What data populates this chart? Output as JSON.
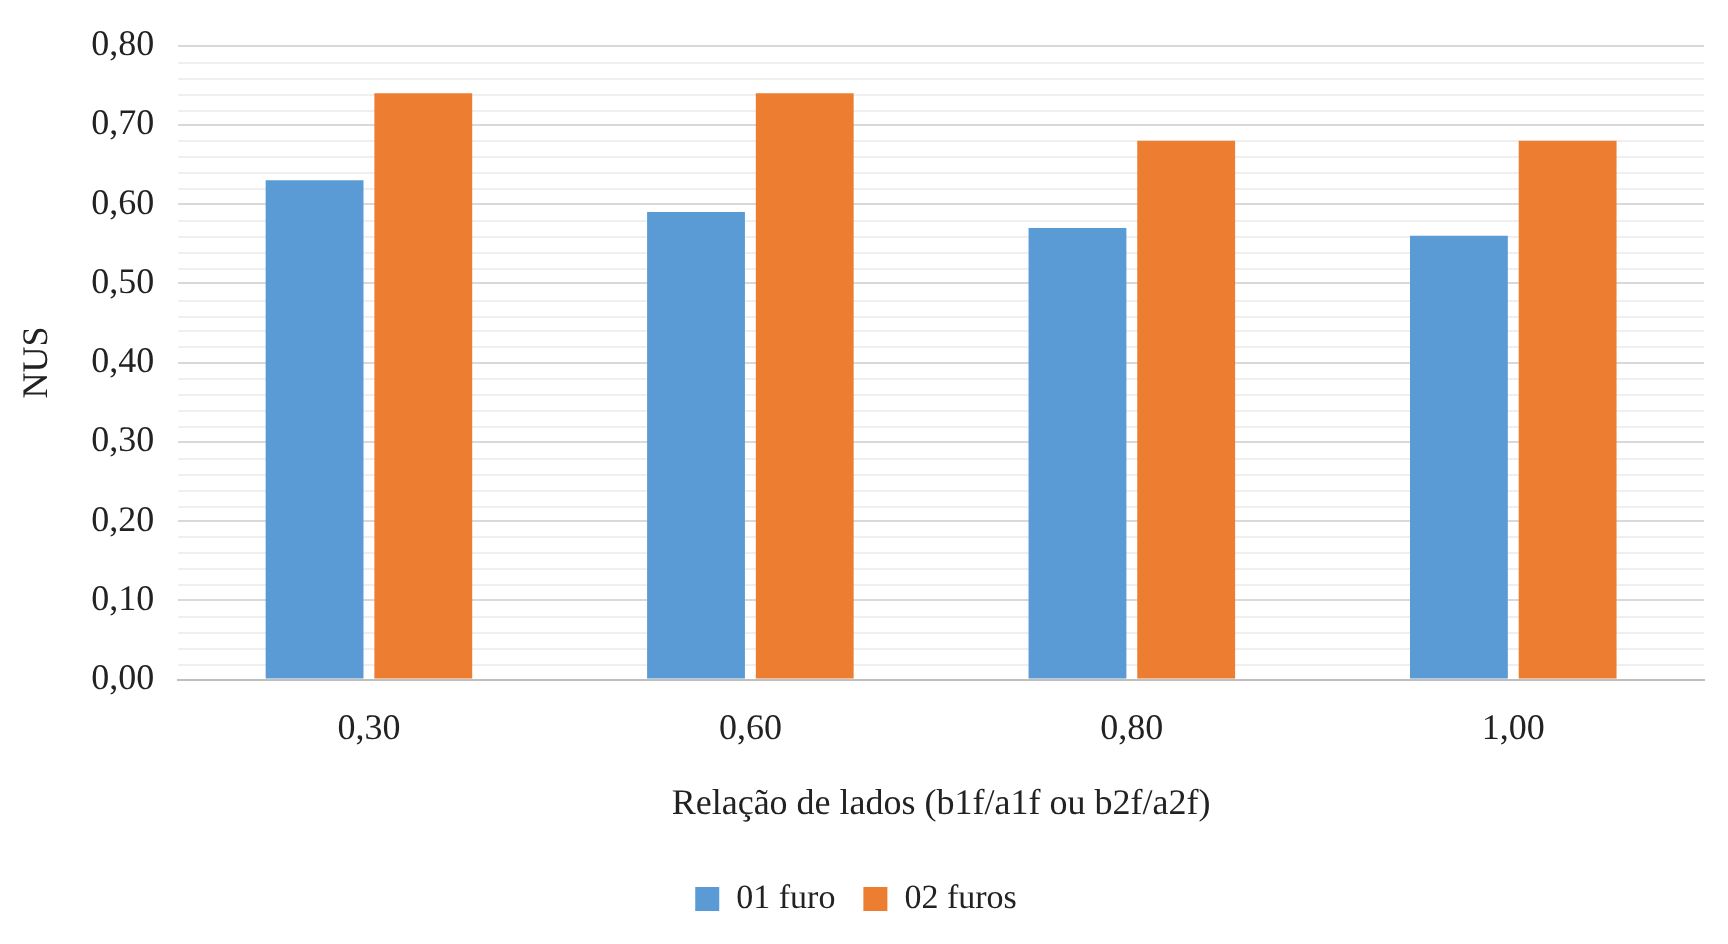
{
  "chart_data": {
    "type": "bar",
    "xlabel": "Relação de lados (b1f/a1f ou b2f/a2f)",
    "ylabel": "NUS",
    "categories": [
      "0,30",
      "0,60",
      "0,80",
      "1,00"
    ],
    "series": [
      {
        "name": "01 furo",
        "color": "#5b9bd5",
        "values": [
          0.63,
          0.59,
          0.57,
          0.56
        ]
      },
      {
        "name": "02 furos",
        "color": "#ed7d31",
        "values": [
          0.74,
          0.74,
          0.68,
          0.68
        ]
      }
    ],
    "ylim": [
      0,
      0.8
    ],
    "yticks": [
      {
        "value": 0,
        "label": "0,00"
      },
      {
        "value": 0.1,
        "label": "0,10"
      },
      {
        "value": 0.2,
        "label": "0,20"
      },
      {
        "value": 0.3,
        "label": "0,30"
      },
      {
        "value": 0.4,
        "label": "0,40"
      },
      {
        "value": 0.5,
        "label": "0,50"
      },
      {
        "value": 0.6,
        "label": "0,60"
      },
      {
        "value": 0.7,
        "label": "0,70"
      },
      {
        "value": 0.8,
        "label": "0,80"
      }
    ],
    "grid": "y",
    "legend": "bottom"
  }
}
